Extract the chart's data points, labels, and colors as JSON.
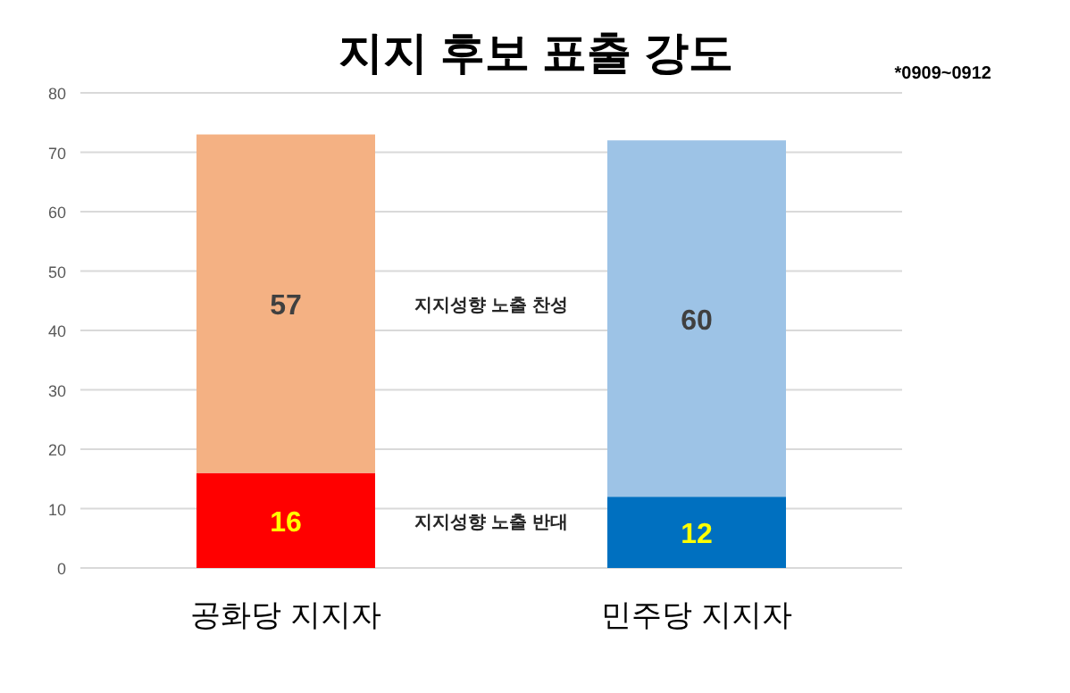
{
  "chart_data": {
    "type": "bar",
    "stacked": true,
    "title": "지지 후보 표출 강도",
    "annotations": [
      "*0909~0912"
    ],
    "categories": [
      "공화당 지지자",
      "민주당 지지자"
    ],
    "series": [
      {
        "name": "지지성향 노출 반대",
        "colors": [
          "#ff0000",
          "#0070c0"
        ],
        "values": [
          16,
          12
        ]
      },
      {
        "name": "지지성향 노출 찬성",
        "colors": [
          "#f4b183",
          "#9dc3e6"
        ],
        "values": [
          57,
          60
        ]
      }
    ],
    "ylim": [
      0,
      80
    ],
    "yticks": [
      0,
      10,
      20,
      30,
      40,
      50,
      60,
      70,
      80
    ],
    "grid": "y",
    "data_labels": true
  }
}
